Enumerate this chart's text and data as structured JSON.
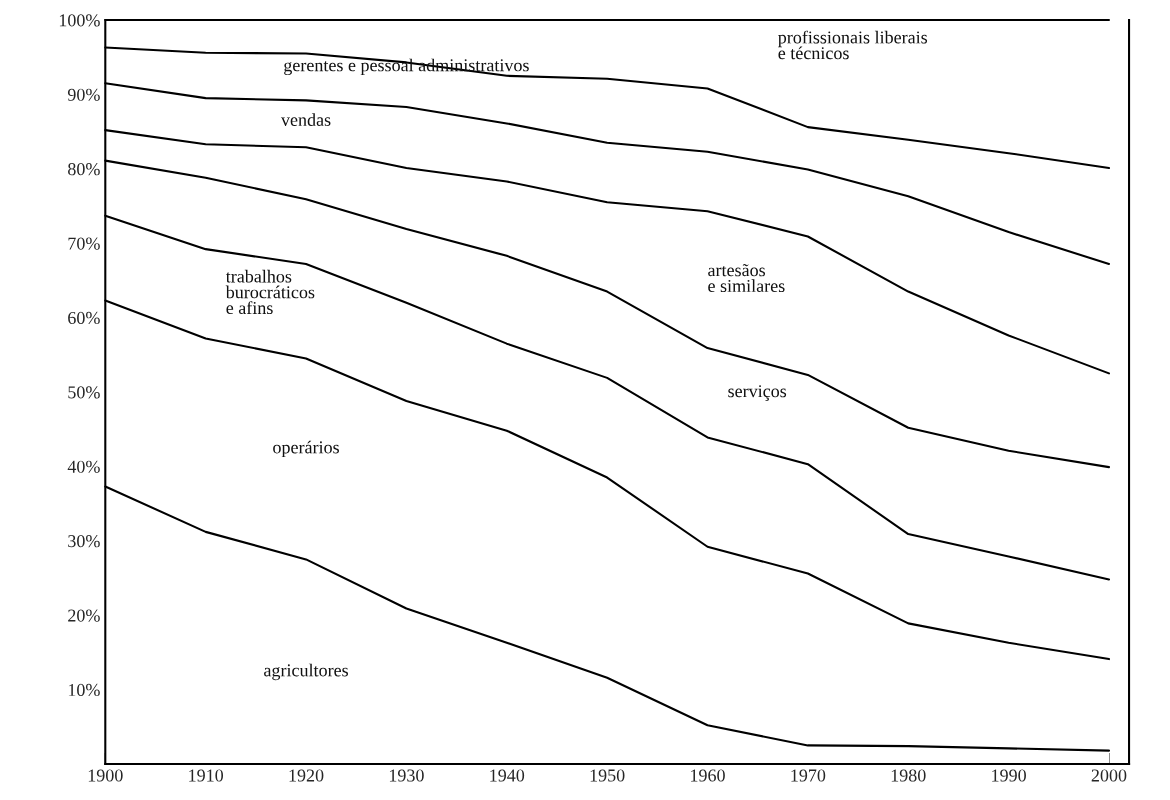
{
  "chart_data": {
    "type": "area",
    "stacked": true,
    "x": [
      1900,
      1910,
      1920,
      1930,
      1940,
      1950,
      1960,
      1970,
      1980,
      1990,
      2000
    ],
    "xlim": [
      1900,
      2002
    ],
    "xticks": [
      1900,
      1910,
      1920,
      1930,
      1940,
      1950,
      1960,
      1970,
      1980,
      1990,
      2000
    ],
    "ylim": [
      0,
      100
    ],
    "yticks": [
      {
        "value": 10,
        "label": "10%"
      },
      {
        "value": 20,
        "label": "20%"
      },
      {
        "value": 30,
        "label": "30%"
      },
      {
        "value": 40,
        "label": "40%"
      },
      {
        "value": 50,
        "label": "50%"
      },
      {
        "value": 60,
        "label": "60%"
      },
      {
        "value": 70,
        "label": "70%"
      },
      {
        "value": 80,
        "label": "80%"
      },
      {
        "value": 90,
        "label": "90%"
      },
      {
        "value": 100,
        "label": "100%"
      }
    ],
    "grid": false,
    "legend": false,
    "series": [
      {
        "name": "agricultores",
        "color": "#000000",
        "values": [
          37.3,
          31.2,
          27.5,
          20.9,
          16.3,
          11.6,
          5.2,
          2.5,
          2.4,
          2.1,
          1.8
        ]
      },
      {
        "name": "operários",
        "color": "#000000",
        "values": [
          25.0,
          26.0,
          27.0,
          27.9,
          28.5,
          26.9,
          24.0,
          23.1,
          16.5,
          14.2,
          12.3
        ]
      },
      {
        "name": "trabalhos\nburocráticos\ne afins",
        "color": "#000000",
        "values": [
          11.4,
          12.0,
          12.7,
          13.2,
          11.7,
          13.4,
          14.7,
          14.7,
          12.0,
          11.6,
          10.7
        ]
      },
      {
        "name": "serviços",
        "color": "#000000",
        "values": [
          7.4,
          9.6,
          8.7,
          9.9,
          11.8,
          11.6,
          12.0,
          12.0,
          14.3,
          14.2,
          15.1
        ]
      },
      {
        "name": "artesãos\ne similares",
        "color": "#000000",
        "values": [
          4.1,
          4.5,
          7.0,
          8.2,
          10.0,
          12.0,
          18.4,
          18.6,
          18.3,
          15.5,
          12.6
        ]
      },
      {
        "name": "vendas",
        "color": "#000000",
        "values": [
          6.3,
          6.2,
          6.3,
          8.2,
          7.8,
          8.0,
          8.0,
          9.0,
          12.8,
          13.9,
          14.7
        ]
      },
      {
        "name": "gerentes e pessoal administrativos",
        "color": "#000000",
        "values": [
          4.8,
          6.1,
          6.3,
          6.0,
          6.4,
          8.6,
          8.5,
          5.7,
          7.6,
          10.6,
          12.9
        ]
      },
      {
        "name": "profissionais liberais\ne técnicos",
        "color": "#000000",
        "values": [
          3.7,
          4.4,
          4.5,
          5.7,
          7.5,
          7.9,
          9.2,
          14.4,
          16.1,
          17.9,
          19.9
        ]
      }
    ]
  }
}
